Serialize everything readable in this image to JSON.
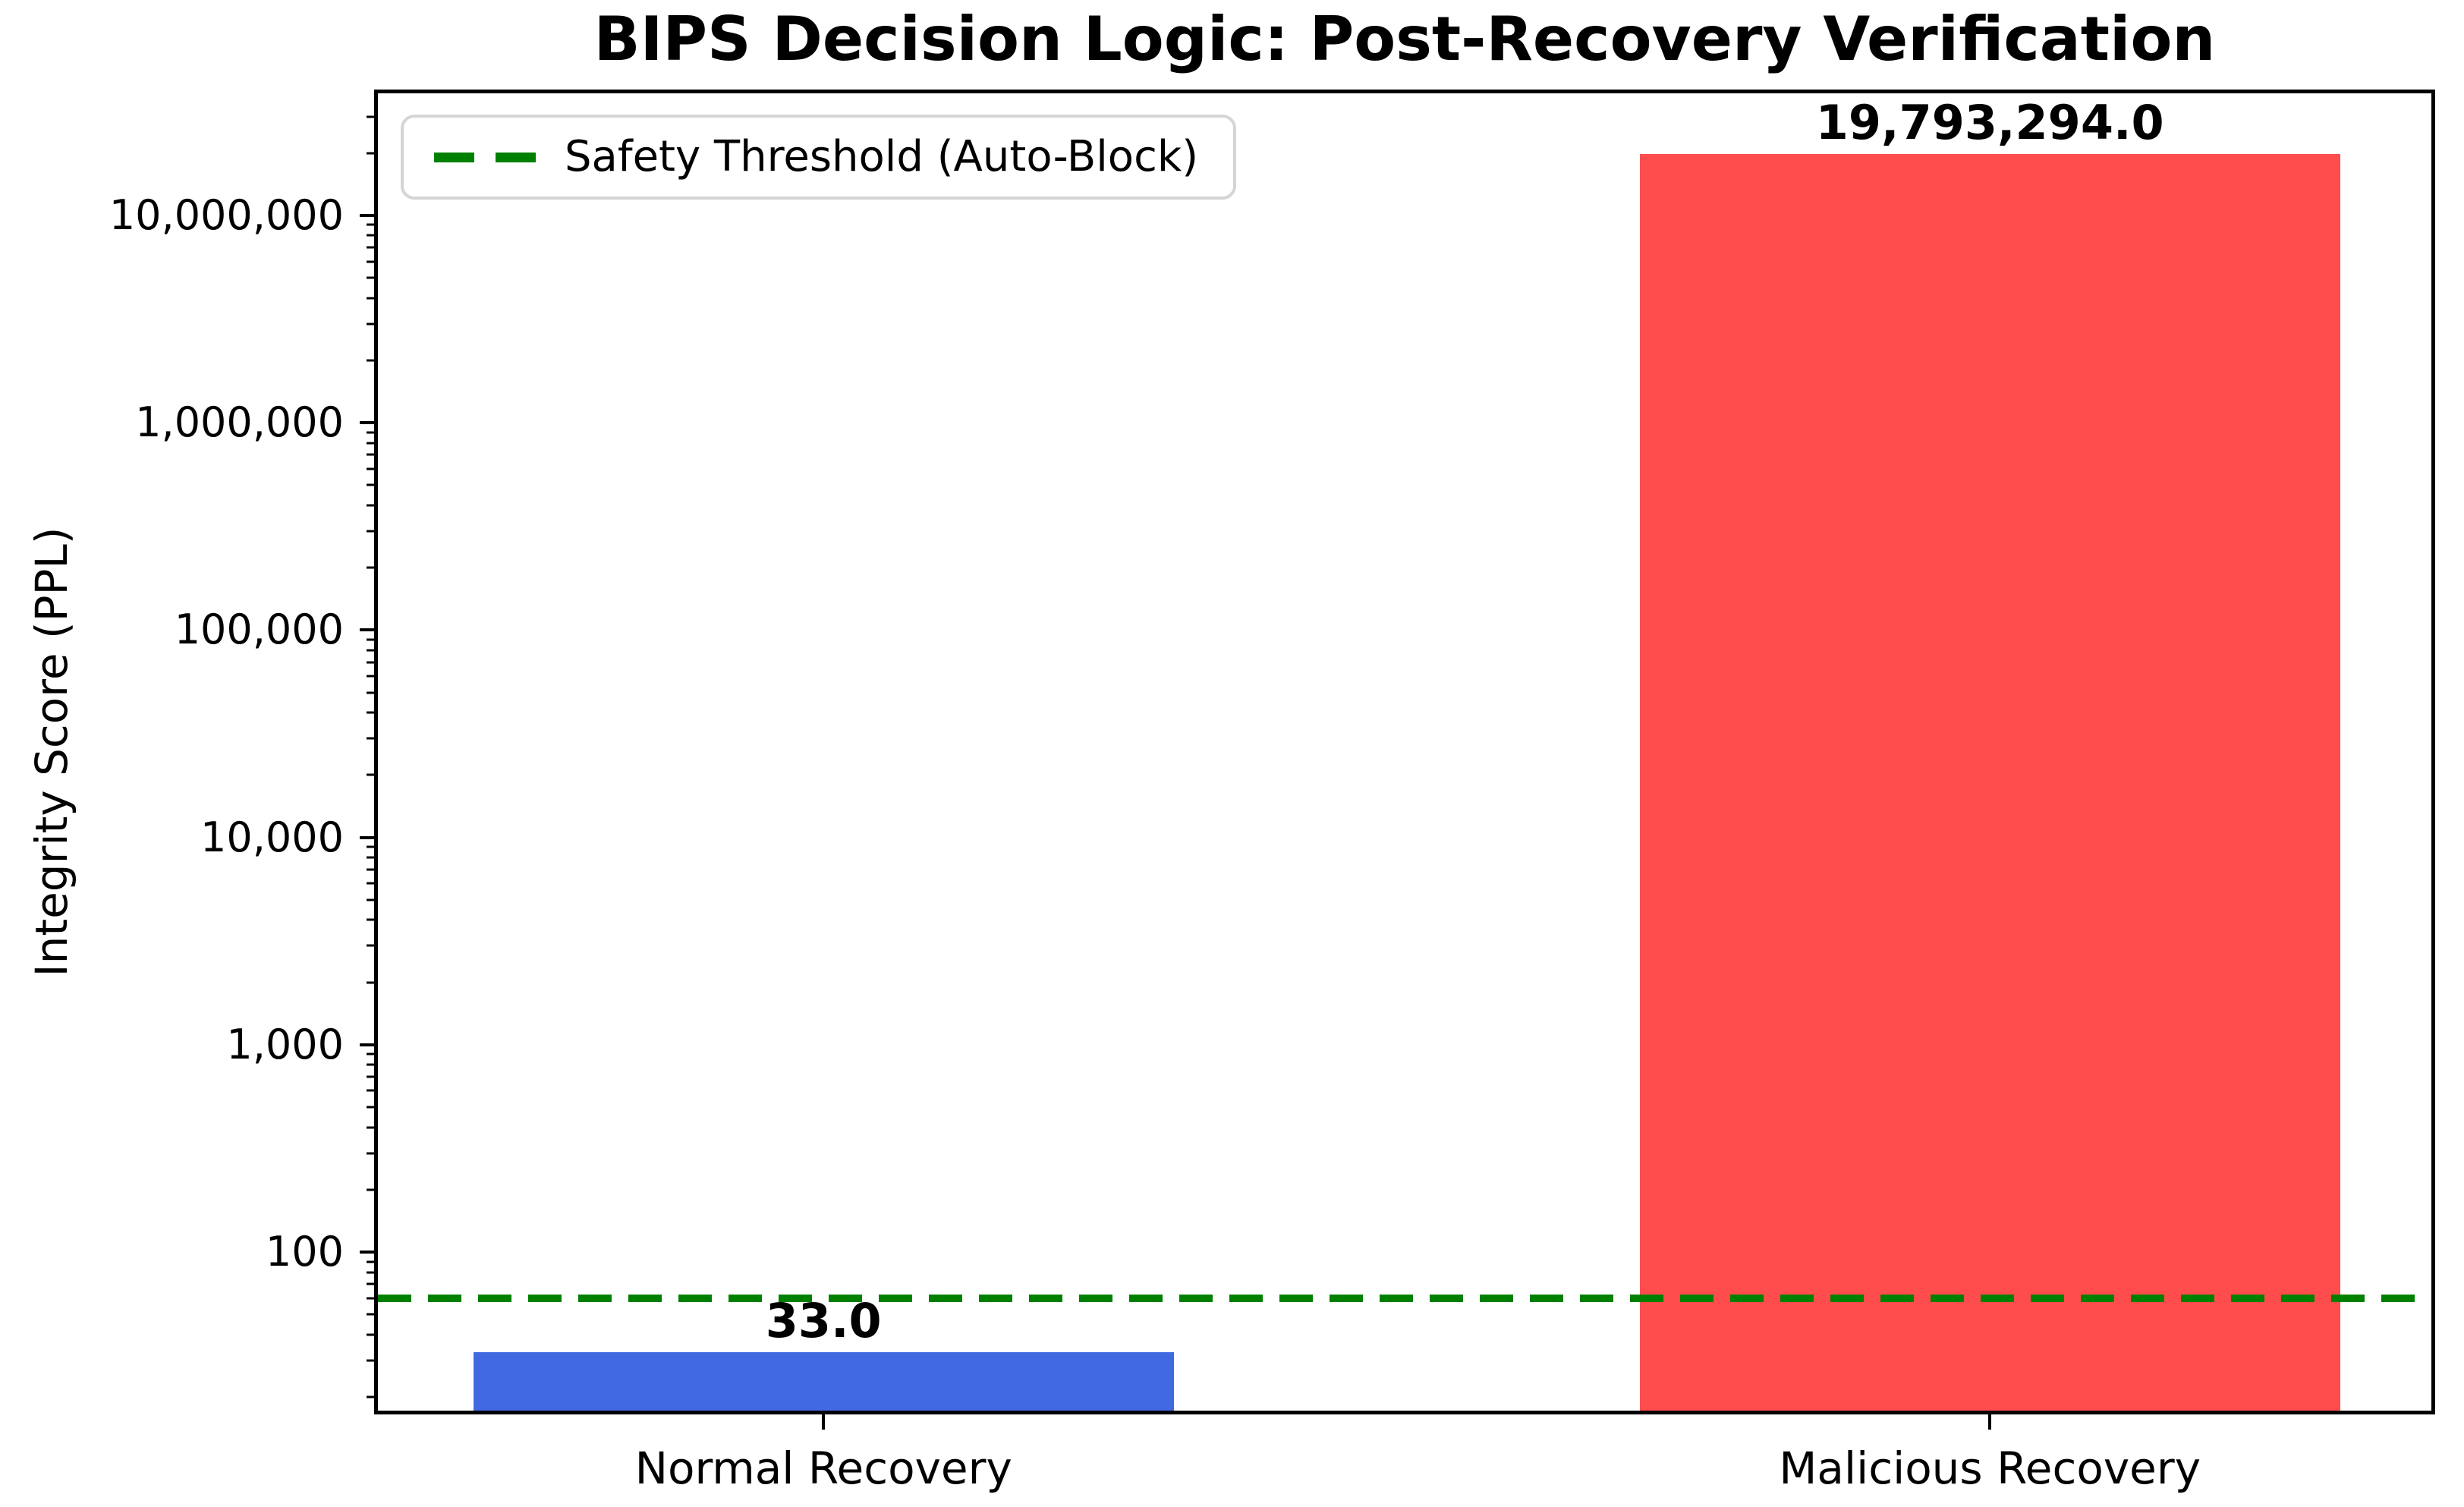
{
  "figure_title": "BIPS Decision Logic: Post-Recovery Verification",
  "colors": {
    "bar_normal": "#4169e1",
    "bar_malicious": "#ff4d4d",
    "threshold_green": "#008000",
    "spine_black": "#000000",
    "legend_border_gray": "#d5d5d5"
  },
  "chart_data": {
    "type": "bar",
    "title": "BIPS Decision Logic: Post-Recovery Verification",
    "xlabel": "",
    "ylabel": "Integrity Score (PPL)",
    "yscale": "log",
    "ylim": [
      17.2,
      38800000
    ],
    "grid": false,
    "categories": [
      "Normal Recovery",
      "Malicious Recovery"
    ],
    "values": [
      33.0,
      19793294.0
    ],
    "value_labels": [
      "33.0",
      "19,793,294.0"
    ],
    "bar_colors": [
      "#4169e1",
      "#ff4d4d"
    ],
    "yticks": [
      100,
      1000,
      10000,
      100000,
      1000000,
      10000000
    ],
    "ytick_labels": [
      "100",
      "1,000",
      "10,000",
      "100,000",
      "1,000,000",
      "10,000,000"
    ],
    "legend_position": "upper left",
    "legend_entries": [
      "Safety Threshold (Auto-Block)"
    ],
    "threshold_line": {
      "value": 60,
      "label": "Safety Threshold (Auto-Block)",
      "color": "#008000",
      "linestyle": "dashed"
    }
  }
}
